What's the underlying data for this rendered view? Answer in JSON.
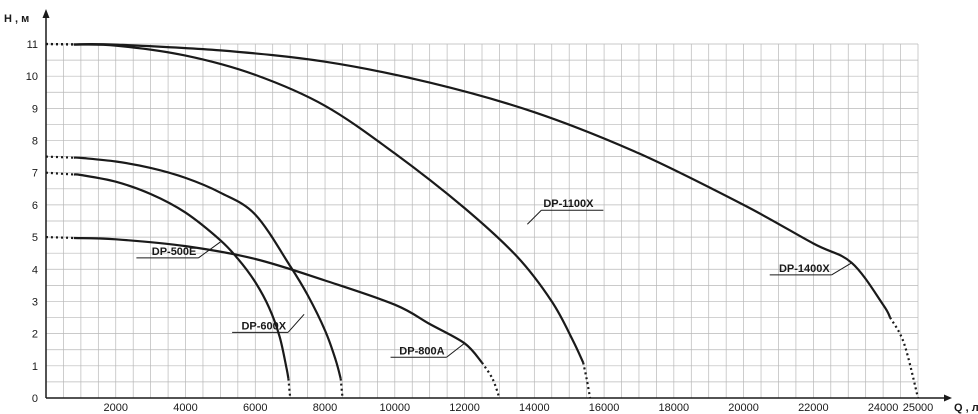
{
  "chart_data": {
    "type": "line",
    "xlabel": "Q , л/ч",
    "ylabel": "H , м",
    "xlim": [
      0,
      25000
    ],
    "ylim": [
      0,
      11
    ],
    "grid": true,
    "x_ticks": [
      2000,
      4000,
      6000,
      8000,
      10000,
      12000,
      14000,
      16000,
      18000,
      20000,
      22000,
      24000,
      25000
    ],
    "y_ticks": [
      0,
      1,
      2,
      3,
      4,
      5,
      6,
      7,
      8,
      9,
      10,
      11
    ],
    "series": [
      {
        "name": "DP-500E",
        "color": "#1a1a1a",
        "points": [
          [
            0,
            7.0
          ],
          [
            1000,
            6.93
          ],
          [
            2000,
            6.72
          ],
          [
            3000,
            6.34
          ],
          [
            4000,
            5.76
          ],
          [
            5000,
            4.9
          ],
          [
            5500,
            4.33
          ],
          [
            6000,
            3.6
          ],
          [
            6400,
            2.8
          ],
          [
            6700,
            1.9
          ],
          [
            6900,
            0.9
          ],
          [
            6950,
            0.6
          ],
          [
            7000,
            0
          ]
        ],
        "solid_from": 800,
        "solid_to": 6950,
        "label_anchor": [
          5000,
          4.85
        ]
      },
      {
        "name": "DP-600X",
        "color": "#1a1a1a",
        "points": [
          [
            0,
            7.5
          ],
          [
            1000,
            7.46
          ],
          [
            2000,
            7.35
          ],
          [
            3000,
            7.15
          ],
          [
            4000,
            6.84
          ],
          [
            5000,
            6.38
          ],
          [
            6000,
            5.7
          ],
          [
            7000,
            4.1
          ],
          [
            7500,
            3.2
          ],
          [
            8000,
            2.1
          ],
          [
            8300,
            1.2
          ],
          [
            8450,
            0.6
          ],
          [
            8500,
            0
          ]
        ],
        "solid_from": 800,
        "solid_to": 8450,
        "label_anchor": [
          7400,
          2.6
        ]
      },
      {
        "name": "DP-800A",
        "color": "#1a1a1a",
        "points": [
          [
            0,
            5.0
          ],
          [
            2000,
            4.93
          ],
          [
            4000,
            4.72
          ],
          [
            6000,
            4.32
          ],
          [
            8000,
            3.65
          ],
          [
            10000,
            2.9
          ],
          [
            11000,
            2.3
          ],
          [
            12000,
            1.7
          ],
          [
            12500,
            1.1
          ],
          [
            12800,
            0.6
          ],
          [
            13000,
            0
          ]
        ],
        "solid_from": 800,
        "solid_to": 12500,
        "label_anchor": [
          12000,
          1.7
        ]
      },
      {
        "name": "DP-1100X",
        "color": "#1a1a1a",
        "points": [
          [
            0,
            11.0
          ],
          [
            2000,
            10.95
          ],
          [
            4000,
            10.64
          ],
          [
            6000,
            10.04
          ],
          [
            8000,
            9.08
          ],
          [
            10000,
            7.6
          ],
          [
            12000,
            5.9
          ],
          [
            13500,
            4.4
          ],
          [
            14500,
            3.0
          ],
          [
            15100,
            1.8
          ],
          [
            15400,
            1.1
          ],
          [
            15500,
            0.6
          ],
          [
            15600,
            0
          ]
        ],
        "solid_from": 800,
        "solid_to": 15400,
        "label_anchor": [
          13800,
          5.4
        ]
      },
      {
        "name": "DP-1400X",
        "color": "#1a1a1a",
        "points": [
          [
            0,
            11.0
          ],
          [
            2000,
            10.98
          ],
          [
            5000,
            10.8
          ],
          [
            8000,
            10.45
          ],
          [
            11000,
            9.8
          ],
          [
            14000,
            8.88
          ],
          [
            17000,
            7.6
          ],
          [
            20000,
            6.0
          ],
          [
            22000,
            4.8
          ],
          [
            23100,
            4.2
          ],
          [
            24000,
            2.9
          ],
          [
            24600,
            1.7
          ],
          [
            25000,
            0
          ]
        ],
        "solid_from": 800,
        "solid_to": 24200,
        "label_anchor": [
          23100,
          4.2
        ]
      }
    ],
    "labels": [
      {
        "text": "DP-500E",
        "series": 0
      },
      {
        "text": "DP-600X",
        "series": 1
      },
      {
        "text": "DP-800A",
        "series": 2
      },
      {
        "text": "DP-1100X",
        "series": 3
      },
      {
        "text": "DP-1400X",
        "series": 4
      }
    ]
  }
}
